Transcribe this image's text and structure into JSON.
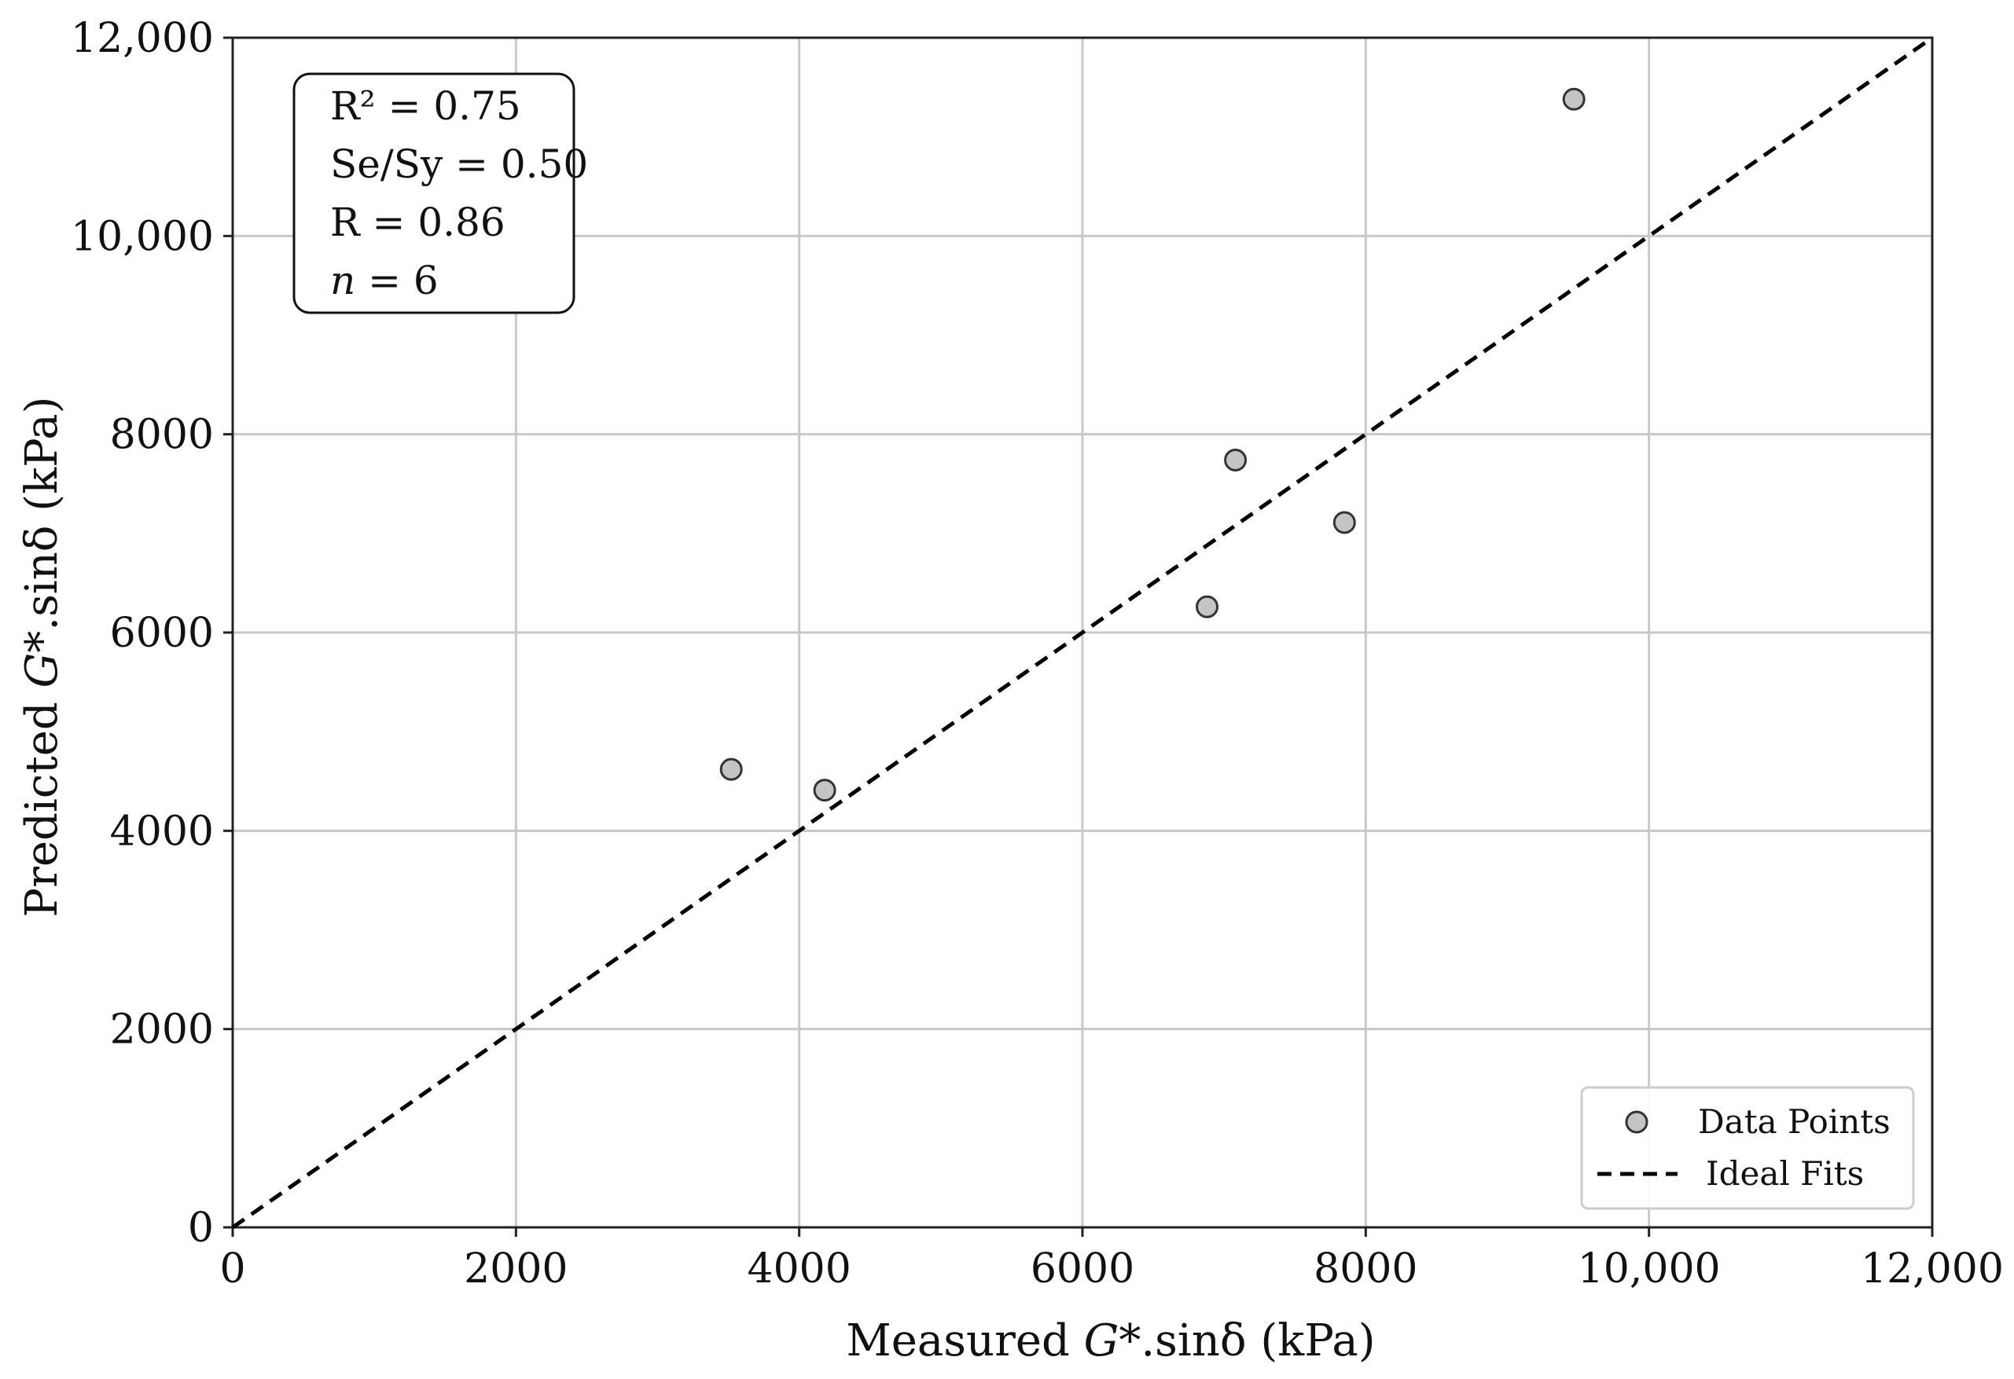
{
  "chart_data": {
    "type": "scatter",
    "title": "",
    "xlabel": {
      "prefix": "Measured ",
      "italic": "G*",
      "suffix": ".sinδ (kPa)"
    },
    "ylabel": {
      "prefix": "Predicted ",
      "italic": "G*",
      "suffix": ".sinδ (kPa)"
    },
    "xlim": [
      0,
      12000
    ],
    "ylim": [
      0,
      12000
    ],
    "x_ticks": [
      0,
      2000,
      4000,
      6000,
      8000,
      10000,
      12000
    ],
    "x_tick_labels": [
      "0",
      "2000",
      "4000",
      "6000",
      "8000",
      "10,000",
      "12,000"
    ],
    "y_ticks": [
      0,
      2000,
      4000,
      6000,
      8000,
      10000,
      12000
    ],
    "y_tick_labels": [
      "0",
      "2000",
      "4000",
      "6000",
      "8000",
      "10,000",
      "12,000"
    ],
    "grid": true,
    "series": [
      {
        "name": "Data Points",
        "kind": "scatter",
        "color": "#c4c4c4",
        "edge_color": "#333333",
        "x": [
          3520,
          4180,
          6880,
          7080,
          7850,
          9470
        ],
        "y": [
          4620,
          4410,
          6260,
          7740,
          7110,
          11380
        ]
      },
      {
        "name": "Ideal Fits",
        "kind": "line",
        "style": "dashed",
        "color": "#000000",
        "x": [
          0,
          12000
        ],
        "y": [
          0,
          12000
        ]
      }
    ],
    "stats_box": {
      "position": "top-left",
      "lines": [
        {
          "text": "R² = 0.75"
        },
        {
          "text": "Se/Sy = 0.50"
        },
        {
          "text": "R = 0.86"
        },
        {
          "italic": "n",
          "text": " = 6"
        }
      ]
    },
    "legend": {
      "position": "bottom-right",
      "entries": [
        "Data Points",
        "Ideal Fits"
      ]
    }
  }
}
